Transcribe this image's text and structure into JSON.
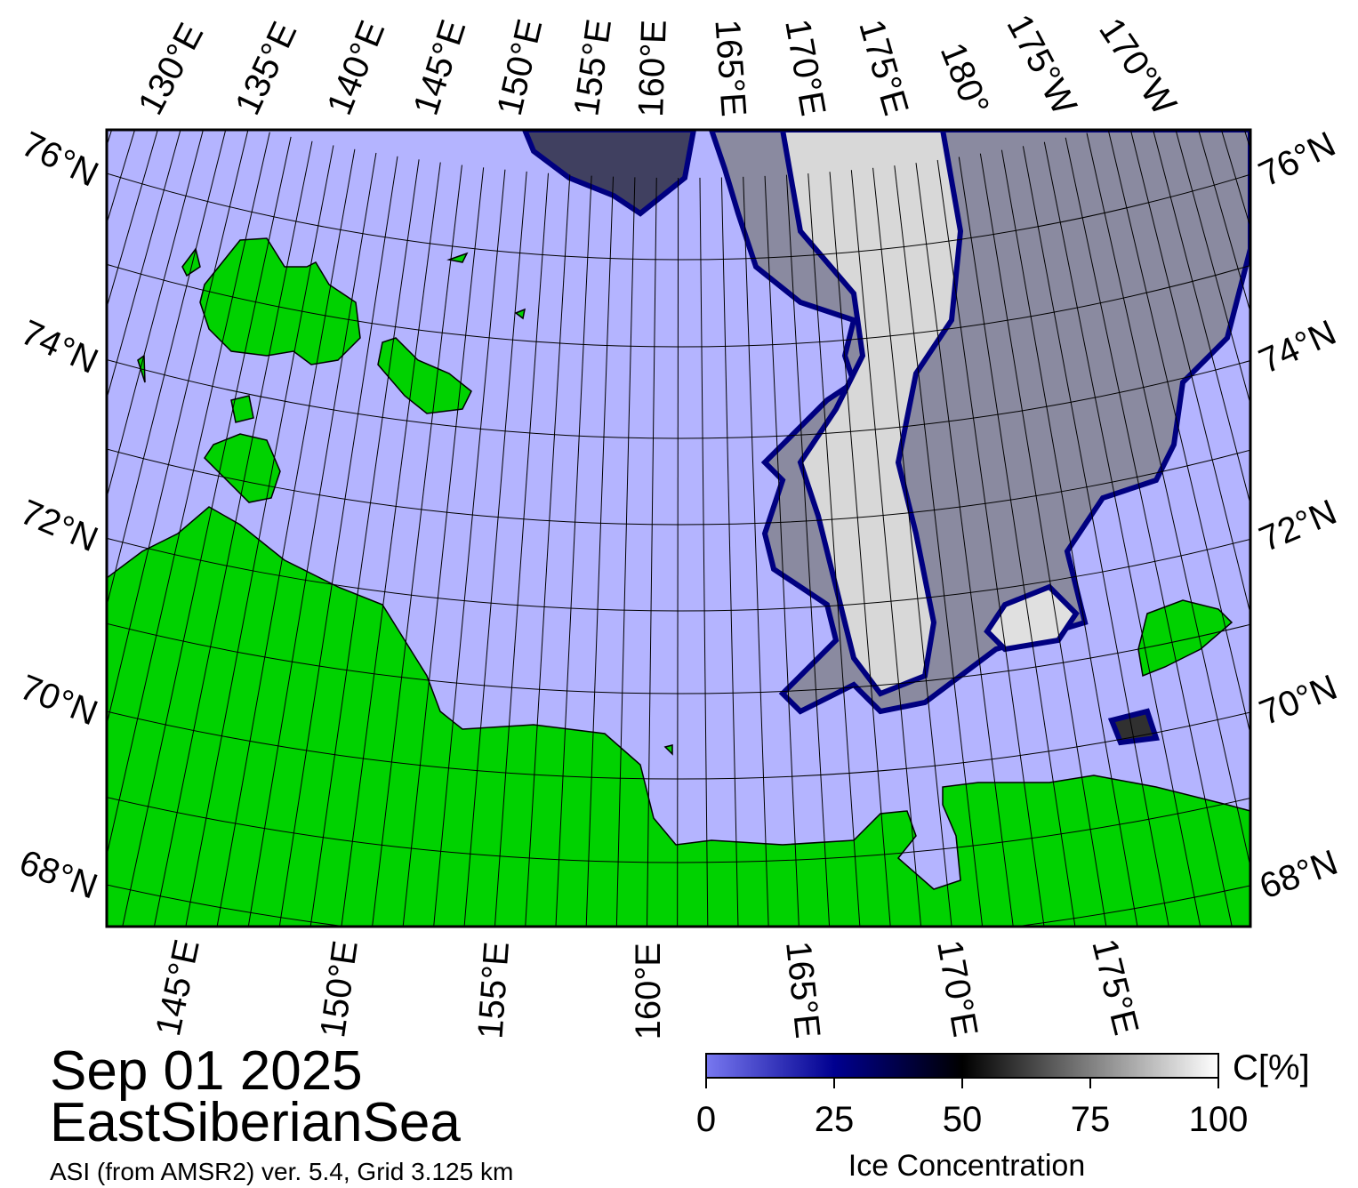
{
  "title": {
    "date": "Sep 01 2025",
    "region": "EastSiberianSea",
    "source": "ASI (from AMSR2) ver. 5.4,  Grid 3.125 km"
  },
  "map": {
    "top_lon_labels": [
      "130°E",
      "135°E",
      "140°E",
      "145°E",
      "150°E",
      "155°E",
      "160°E",
      "165°E",
      "170°E",
      "175°E",
      "180°",
      "175°W",
      "170°W"
    ],
    "bottom_lon_labels": [
      "145°E",
      "150°E",
      "155°E",
      "160°E",
      "165°E",
      "170°E",
      "175°E"
    ],
    "left_lat_labels": [
      "76°N",
      "74°N",
      "72°N",
      "70°N",
      "68°N"
    ],
    "right_lat_labels": [
      "76°N",
      "74°N",
      "72°N",
      "70°N",
      "68°N"
    ]
  },
  "colorbar": {
    "label": "Ice Concentration",
    "unit": "C[%]",
    "range": [
      0,
      100
    ],
    "ticks": [
      0,
      25,
      50,
      75,
      100
    ]
  }
}
